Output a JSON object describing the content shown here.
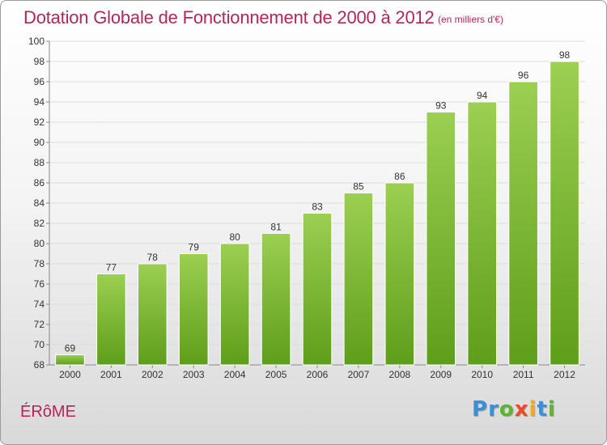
{
  "header": {
    "title": "Dotation Globale de Fonctionnement de 2000 à 2012",
    "subtitle": "(en milliers d'€)"
  },
  "footer": {
    "place": "ÉRôME",
    "logo": [
      "P",
      "r",
      "o",
      "x",
      "i",
      "t",
      "i"
    ]
  },
  "colors": {
    "title": "#b0275a",
    "bar_light": "#9ccf52",
    "bar_dark": "#5e9e1a",
    "grid": "#dddddd"
  },
  "chart_data": {
    "type": "bar",
    "categories": [
      "2000",
      "2001",
      "2002",
      "2003",
      "2004",
      "2005",
      "2006",
      "2007",
      "2008",
      "2009",
      "2010",
      "2011",
      "2012"
    ],
    "values": [
      69,
      77,
      78,
      79,
      80,
      81,
      83,
      85,
      86,
      93,
      94,
      96,
      98
    ],
    "title": "Dotation Globale de Fonctionnement de 2000 à 2012",
    "ylabel": "",
    "xlabel": "",
    "ylim": [
      68,
      100
    ],
    "yticks": [
      68,
      70,
      72,
      74,
      76,
      78,
      80,
      82,
      84,
      86,
      88,
      90,
      92,
      94,
      96,
      98,
      100
    ],
    "grid": true,
    "legend": "none"
  }
}
